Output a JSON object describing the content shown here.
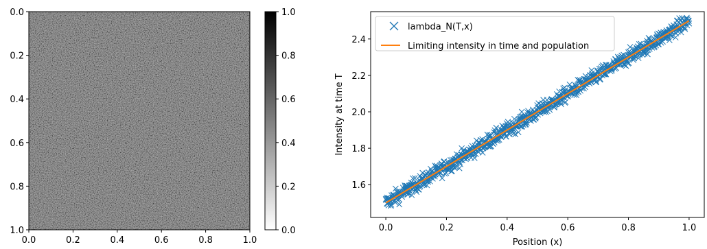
{
  "chart_data": [
    {
      "type": "heatmap",
      "title": "",
      "xlabel": "",
      "ylabel": "",
      "xlim": [
        0.0,
        1.0
      ],
      "ylim": [
        1.0,
        0.0
      ],
      "xticks": [
        "0.0",
        "0.2",
        "0.4",
        "0.6",
        "0.8",
        "1.0"
      ],
      "yticks": [
        "0.0",
        "0.2",
        "0.4",
        "0.6",
        "0.8",
        "1.0"
      ],
      "colormap": "gray_r",
      "mean_value": 0.5,
      "colorbar": {
        "range": [
          0.0,
          1.0
        ],
        "ticks": [
          "0.0",
          "0.2",
          "0.4",
          "0.6",
          "0.8",
          "1.0"
        ]
      }
    },
    {
      "type": "scatter",
      "title": "",
      "xlabel": "Position (x)",
      "ylabel": "Intensity at time T",
      "xlim": [
        -0.05,
        1.05
      ],
      "ylim": [
        1.42,
        2.55
      ],
      "xticks": [
        "0.0",
        "0.2",
        "0.4",
        "0.6",
        "0.8",
        "1.0"
      ],
      "yticks": [
        "1.6",
        "1.8",
        "2.0",
        "2.2",
        "2.4"
      ],
      "legend_position": "top-left",
      "grid": false,
      "series": [
        {
          "name": "lambda_N(T,x)",
          "kind": "scatter",
          "marker": "x",
          "color": "#1f77b4",
          "x_range": [
            0.0,
            1.0
          ],
          "trend": {
            "intercept": 1.5,
            "slope": 1.0
          },
          "noise_spread": 0.04
        },
        {
          "name": "Limiting intensity in time and population",
          "kind": "line",
          "color": "#ff7f0e",
          "x": [
            0.0,
            1.0
          ],
          "y": [
            1.5,
            2.5
          ]
        }
      ]
    }
  ]
}
